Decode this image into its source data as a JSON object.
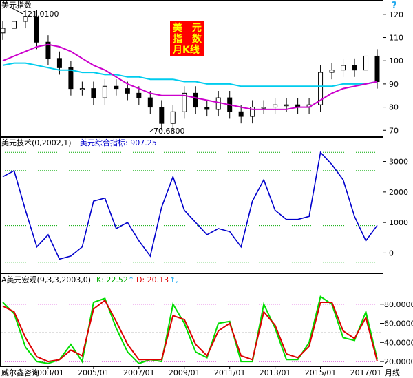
{
  "panel1": {
    "title": "美元指数",
    "max_label": "121.0100",
    "min_label": "70.6800",
    "yticks": [
      "120",
      "110",
      "100",
      "90",
      "80",
      "70"
    ],
    "badge_lines": [
      "美　元",
      "指　数",
      "月K线"
    ],
    "help_icon": "question-icon"
  },
  "panel2": {
    "title": "美元技术(0,2002,1)",
    "series_label": "美元综合指标: 907.25",
    "yticks": [
      "3000",
      "2000",
      "1000",
      "0"
    ]
  },
  "panel3": {
    "title": "A美元宏观(9,3,3,2003,0)",
    "k_label": "K: 22.52",
    "d_label": "D: 20.13",
    "yticks": [
      "80.0000",
      "60.0000",
      "40.0000",
      "20.0000"
    ]
  },
  "footer": {
    "source": "威尔鑫咨询",
    "period": "月线"
  },
  "xticks": [
    "2003/01",
    "2005/01",
    "2007/01",
    "2009/01",
    "2011/01",
    "2013/01",
    "2015/01",
    "2017/01"
  ],
  "colors": {
    "candle": "#000000",
    "ma_long": "#00ccee",
    "ma_mid": "#cc00cc",
    "tech_line": "#0000cc",
    "k_line": "#00dd00",
    "d_line": "#dd0000",
    "badge_bg": "#ff0000",
    "badge_text": "#ffff00"
  },
  "chart_data": [
    {
      "type": "candlestick",
      "title": "美元指数",
      "ylim": [
        68,
        125
      ],
      "x": [
        "2001/01",
        "2001/07",
        "2002/01",
        "2002/07",
        "2003/01",
        "2003/07",
        "2004/01",
        "2004/07",
        "2005/01",
        "2005/07",
        "2006/01",
        "2006/07",
        "2007/01",
        "2007/07",
        "2008/01",
        "2008/07",
        "2009/01",
        "2009/07",
        "2010/01",
        "2010/07",
        "2011/01",
        "2011/07",
        "2012/01",
        "2012/07",
        "2013/01",
        "2013/07",
        "2014/01",
        "2014/07",
        "2015/01",
        "2015/07",
        "2016/01",
        "2016/07",
        "2017/01",
        "2017/07"
      ],
      "series": [
        {
          "name": "close",
          "values": [
            114,
            117,
            119,
            108,
            101,
            97,
            88,
            88,
            84,
            89,
            88,
            86,
            84,
            80,
            73,
            78,
            86,
            80,
            79,
            84,
            78,
            76,
            80,
            80,
            81,
            81,
            80,
            81,
            95,
            96,
            98,
            96,
            102,
            91
          ]
        },
        {
          "name": "ma_long",
          "values": [
            98,
            99,
            99,
            98,
            97,
            96,
            96,
            95,
            95,
            94,
            94,
            93,
            93,
            92,
            92,
            92,
            91,
            91,
            90,
            90,
            90,
            89,
            89,
            89,
            89,
            89,
            89,
            89,
            89,
            89,
            90,
            90,
            90,
            91
          ]
        },
        {
          "name": "ma_mid",
          "values": [
            100,
            102,
            104,
            106,
            107,
            106,
            104,
            101,
            98,
            96,
            93,
            90,
            88,
            86,
            85,
            85,
            85,
            84,
            83,
            82,
            81,
            80,
            79,
            79,
            79,
            79,
            80,
            80,
            83,
            86,
            88,
            89,
            90,
            91
          ]
        }
      ],
      "annotations": [
        "121.0100",
        "70.6800"
      ]
    },
    {
      "type": "line",
      "title": "美元技术(0,2002,1)",
      "ylim": [
        -600,
        3600
      ],
      "x": [
        "2001/01",
        "2001/07",
        "2002/01",
        "2002/07",
        "2003/01",
        "2003/07",
        "2004/01",
        "2004/07",
        "2005/01",
        "2005/07",
        "2006/01",
        "2006/07",
        "2007/01",
        "2007/07",
        "2008/01",
        "2008/07",
        "2009/01",
        "2009/07",
        "2010/01",
        "2010/07",
        "2011/01",
        "2011/07",
        "2012/01",
        "2012/07",
        "2013/01",
        "2013/07",
        "2014/01",
        "2014/07",
        "2015/01",
        "2015/07",
        "2016/01",
        "2016/07",
        "2017/01",
        "2017/07"
      ],
      "series": [
        {
          "name": "美元综合指标",
          "values": [
            2500,
            2700,
            1400,
            200,
            600,
            -200,
            -100,
            200,
            1700,
            1800,
            800,
            1000,
            400,
            -100,
            1500,
            2500,
            1400,
            1000,
            600,
            800,
            700,
            200,
            1700,
            2400,
            1400,
            1100,
            1100,
            1200,
            3300,
            2900,
            2400,
            1200,
            400,
            907.25
          ]
        }
      ]
    },
    {
      "type": "line",
      "title": "A美元宏观(9,3,3,2003,0)",
      "ylim": [
        15,
        100
      ],
      "x": [
        "2001/01",
        "2001/07",
        "2002/01",
        "2002/07",
        "2003/01",
        "2003/07",
        "2004/01",
        "2004/07",
        "2005/01",
        "2005/07",
        "2006/01",
        "2006/07",
        "2007/01",
        "2007/07",
        "2008/01",
        "2008/07",
        "2009/01",
        "2009/07",
        "2010/01",
        "2010/07",
        "2011/01",
        "2011/07",
        "2012/01",
        "2012/07",
        "2013/01",
        "2013/07",
        "2014/01",
        "2014/07",
        "2015/01",
        "2015/07",
        "2016/01",
        "2016/07",
        "2017/01",
        "2017/07"
      ],
      "series": [
        {
          "name": "K",
          "values": [
            82,
            70,
            35,
            20,
            18,
            22,
            38,
            20,
            82,
            86,
            55,
            30,
            18,
            22,
            20,
            80,
            60,
            30,
            24,
            60,
            62,
            20,
            20,
            80,
            55,
            22,
            22,
            40,
            88,
            80,
            45,
            42,
            72,
            22.52
          ]
        },
        {
          "name": "D",
          "values": [
            78,
            72,
            45,
            25,
            20,
            22,
            32,
            26,
            75,
            84,
            62,
            38,
            22,
            22,
            22,
            68,
            64,
            38,
            26,
            52,
            60,
            26,
            22,
            72,
            58,
            28,
            24,
            36,
            82,
            82,
            52,
            44,
            66,
            20.13
          ]
        }
      ]
    }
  ]
}
